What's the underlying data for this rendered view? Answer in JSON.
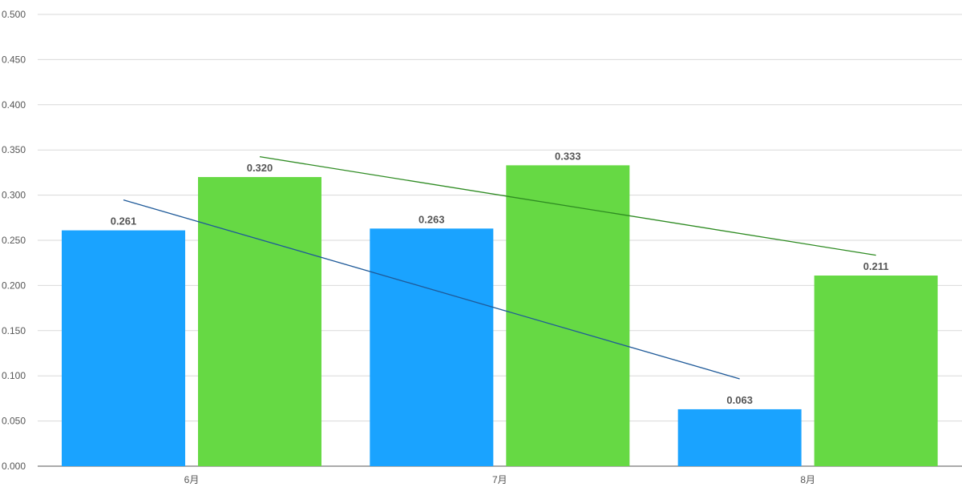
{
  "chart_data": {
    "type": "bar",
    "categories": [
      "6月",
      "7月",
      "8月"
    ],
    "series": [
      {
        "values": [
          0.261,
          0.263,
          0.063
        ],
        "color": "#1aa3ff",
        "trendline_color": "#1f5a99"
      },
      {
        "values": [
          0.32,
          0.333,
          0.211
        ],
        "color": "#66d944",
        "trendline_color": "#2e8b22"
      }
    ],
    "data_labels": [
      [
        "0.261",
        "0.263",
        "0.063"
      ],
      [
        "0.320",
        "0.333",
        "0.211"
      ]
    ],
    "ylim": [
      0,
      0.5
    ],
    "y_ticks": [
      "0.000",
      "0.050",
      "0.100",
      "0.150",
      "0.200",
      "0.250",
      "0.300",
      "0.350",
      "0.400",
      "0.450",
      "0.500"
    ],
    "trendlines": true,
    "grid": true,
    "title": "",
    "xlabel": "",
    "ylabel": ""
  }
}
